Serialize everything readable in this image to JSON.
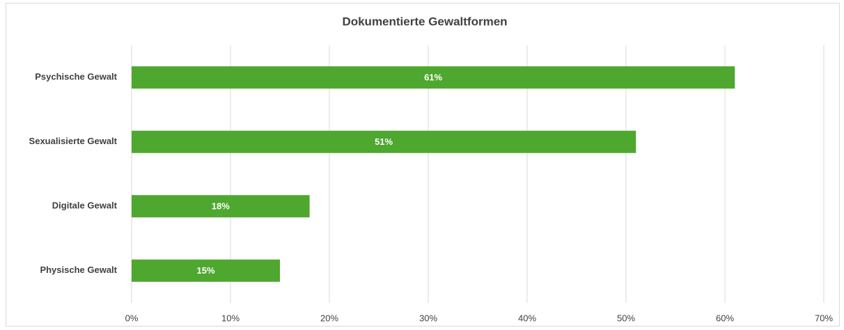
{
  "chart_data": {
    "type": "bar",
    "orientation": "horizontal",
    "title": "Dokumentierte Gewaltformen",
    "categories": [
      "Psychische Gewalt",
      "Sexualisierte Gewalt",
      "Digitale Gewalt",
      "Physische Gewalt"
    ],
    "values": [
      61,
      51,
      18,
      15
    ],
    "value_labels": [
      "61%",
      "51%",
      "18%",
      "15%"
    ],
    "color": "#4ea72e",
    "xlim": [
      0,
      70
    ],
    "xticks": [
      {
        "value": 0,
        "label": "0%"
      },
      {
        "value": 10,
        "label": "10%"
      },
      {
        "value": 20,
        "label": "20%"
      },
      {
        "value": 30,
        "label": "30%"
      },
      {
        "value": 40,
        "label": "40%"
      },
      {
        "value": 50,
        "label": "50%"
      },
      {
        "value": 60,
        "label": "60%"
      },
      {
        "value": 70,
        "label": "70%"
      }
    ],
    "grid": true
  }
}
